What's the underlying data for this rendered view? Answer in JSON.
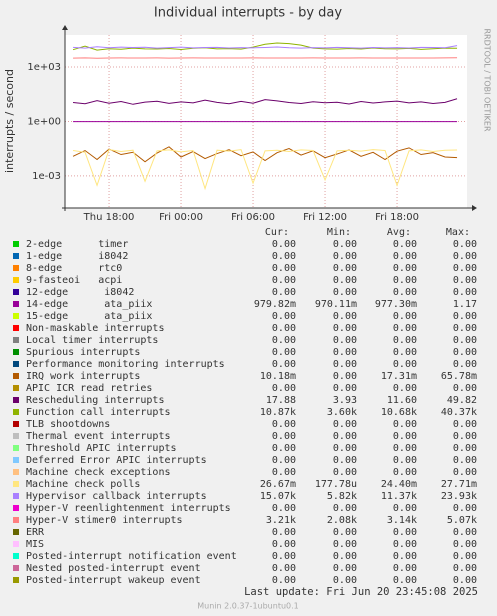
{
  "chart_data": {
    "type": "line",
    "title": "Individual interrupts - by day",
    "y_label": "interrupts / second",
    "side_text": "RRDTOOL / TOBI OETIKER",
    "footer": "Last update: Fri Jun 20 23:45:08 2025",
    "version": "Munin 2.0.37-1ubuntu0.1",
    "y_log": true,
    "grid": true,
    "xlim": [
      14.33,
      47.83
    ],
    "xticks": [
      {
        "value": 18,
        "label": "Thu 18:00"
      },
      {
        "value": 24,
        "label": "Fri 00:00"
      },
      {
        "value": 30,
        "label": "Fri 06:00"
      },
      {
        "value": 36,
        "label": "Fri 12:00"
      },
      {
        "value": 42,
        "label": "Fri 18:00"
      }
    ],
    "ylim": [
      1.7e-05,
      58000
    ],
    "yticks": [
      {
        "value": 0.001,
        "label": "1e-03"
      },
      {
        "value": 1,
        "label": "1e+00"
      },
      {
        "value": 1000,
        "label": "1e+03"
      }
    ],
    "x": [
      15,
      16,
      17,
      18,
      19,
      20,
      21,
      22,
      23,
      24,
      25,
      26,
      27,
      28,
      29,
      30,
      31,
      32,
      33,
      34,
      35,
      36,
      37,
      38,
      39,
      40,
      41,
      42,
      43,
      44,
      45,
      46,
      47
    ],
    "legend_headers": [
      "Cur:",
      "Min:",
      "Avg:",
      "Max:"
    ],
    "series": [
      {
        "name": "2-edge      timer",
        "color": "#00cc00",
        "cur": "0.00",
        "min": "0.00",
        "avg": "0.00",
        "max": "0.00"
      },
      {
        "name": "1-edge      i8042",
        "color": "#0066b3",
        "cur": "0.00",
        "min": "0.00",
        "avg": "0.00",
        "max": "0.00"
      },
      {
        "name": "8-edge      rtc0",
        "color": "#ff8000",
        "cur": "0.00",
        "min": "0.00",
        "avg": "0.00",
        "max": "0.00"
      },
      {
        "name": "9-fasteoi   acpi",
        "color": "#ffcc00",
        "cur": "0.00",
        "min": "0.00",
        "avg": "0.00",
        "max": "0.00"
      },
      {
        "name": "12-edge      i8042",
        "color": "#330099",
        "cur": "0.00",
        "min": "0.00",
        "avg": "0.00",
        "max": "0.00"
      },
      {
        "name": "14-edge      ata_piix",
        "color": "#990099",
        "cur": "979.82m",
        "min": "970.11m",
        "avg": "977.30m",
        "max": "1.17",
        "values": [
          0.978,
          0.976,
          0.977,
          0.979,
          0.975,
          0.977,
          0.978,
          0.976,
          0.977,
          0.977,
          0.978,
          0.976,
          0.977,
          0.979,
          0.977,
          0.976,
          0.978,
          0.977,
          0.977,
          0.976,
          0.978,
          0.977,
          0.979,
          0.976,
          0.977,
          0.978,
          0.977,
          0.976,
          0.977,
          0.978,
          0.977,
          0.976,
          0.98
        ]
      },
      {
        "name": "15-edge      ata_piix",
        "color": "#ccff00",
        "cur": "0.00",
        "min": "0.00",
        "avg": "0.00",
        "max": "0.00"
      },
      {
        "name": "Non-maskable interrupts",
        "color": "#ff0000",
        "cur": "0.00",
        "min": "0.00",
        "avg": "0.00",
        "max": "0.00"
      },
      {
        "name": "Local timer interrupts",
        "color": "#808080",
        "cur": "0.00",
        "min": "0.00",
        "avg": "0.00",
        "max": "0.00"
      },
      {
        "name": "Spurious interrupts",
        "color": "#008f00",
        "cur": "0.00",
        "min": "0.00",
        "avg": "0.00",
        "max": "0.00"
      },
      {
        "name": "Performance monitoring interrupts",
        "color": "#00487d",
        "cur": "0.00",
        "min": "0.00",
        "avg": "0.00",
        "max": "0.00"
      },
      {
        "name": "IRQ work interrupts",
        "color": "#b35a00",
        "cur": "10.18m",
        "min": "0.00",
        "avg": "17.31m",
        "max": "65.78m",
        "values": [
          0.012,
          0.025,
          0.008,
          0.03,
          0.015,
          0.02,
          0.006,
          0.018,
          0.04,
          0.011,
          0.022,
          0.009,
          0.017,
          0.028,
          0.013,
          0.021,
          0.007,
          0.019,
          0.032,
          0.014,
          0.024,
          0.01,
          0.016,
          0.027,
          0.012,
          0.02,
          0.008,
          0.023,
          0.035,
          0.015,
          0.019,
          0.011,
          0.0102
        ]
      },
      {
        "name": "APIC ICR read retries",
        "color": "#b38f00",
        "cur": "0.00",
        "min": "0.00",
        "avg": "0.00",
        "max": "0.00"
      },
      {
        "name": "Rescheduling interrupts",
        "color": "#6b006b",
        "cur": "17.88",
        "min": "3.93",
        "avg": "11.60",
        "max": "49.82",
        "values": [
          11,
          9.5,
          14,
          10,
          12.5,
          8.8,
          11.6,
          13,
          9.9,
          12,
          10.5,
          15,
          11.2,
          9.4,
          12.8,
          10.1,
          16,
          13.5,
          11,
          9.7,
          12.2,
          10.8,
          11.5,
          9.2,
          12.6,
          10.4,
          11.9,
          13.1,
          10.6,
          12,
          9.8,
          11.3,
          17.88
        ]
      },
      {
        "name": "Function call interrupts",
        "color": "#8fb300",
        "cur": "10.87k",
        "min": "3.60k",
        "avg": "10.68k",
        "max": "40.37k",
        "values": [
          9000,
          14000,
          8500,
          10200,
          9500,
          11000,
          10000,
          9800,
          10500,
          9200,
          10800,
          11500,
          9900,
          10300,
          9700,
          12500,
          18000,
          21000,
          19500,
          16000,
          11000,
          10000,
          9600,
          10400,
          9800,
          11200,
          10100,
          9900,
          10600,
          9400,
          10200,
          11000,
          10870
        ]
      },
      {
        "name": "TLB shootdowns",
        "color": "#b30000",
        "cur": "0.00",
        "min": "0.00",
        "avg": "0.00",
        "max": "0.00"
      },
      {
        "name": "Thermal event interrupts",
        "color": "#bebebe",
        "cur": "0.00",
        "min": "0.00",
        "avg": "0.00",
        "max": "0.00"
      },
      {
        "name": "Threshold APIC interrupts",
        "color": "#80ff80",
        "cur": "0.00",
        "min": "0.00",
        "avg": "0.00",
        "max": "0.00"
      },
      {
        "name": "Deferred Error APIC interrupts",
        "color": "#80c9ff",
        "cur": "0.00",
        "min": "0.00",
        "avg": "0.00",
        "max": "0.00"
      },
      {
        "name": "Machine check exceptions",
        "color": "#ffc080",
        "cur": "0.00",
        "min": "0.00",
        "avg": "0.00",
        "max": "0.00"
      },
      {
        "name": "Machine check polls",
        "color": "#ffe680",
        "cur": "26.67m",
        "min": "177.78u",
        "avg": "24.40m",
        "max": "27.71m",
        "values": [
          0.025,
          0.02,
          0.0003,
          0.028,
          0.022,
          0.026,
          0.0005,
          0.024,
          0.027,
          0.021,
          0.025,
          0.0002,
          0.026,
          0.023,
          0.028,
          0.0004,
          0.024,
          0.026,
          0.022,
          0.027,
          0.025,
          0.0006,
          0.024,
          0.026,
          0.023,
          0.028,
          0.025,
          0.0003,
          0.024,
          0.027,
          0.022,
          0.026,
          0.0267
        ]
      },
      {
        "name": "Hypervisor callback interrupts",
        "color": "#aa80ff",
        "cur": "15.07k",
        "min": "5.82k",
        "avg": "11.37k",
        "max": "23.93k",
        "values": [
          12000,
          11000,
          13000,
          11500,
          12500,
          11800,
          12200,
          11000,
          11600,
          12400,
          11300,
          11900,
          12100,
          11200,
          11700,
          11400,
          11800,
          12600,
          11500,
          10900,
          11700,
          11300,
          12000,
          11500,
          11000,
          11800,
          11400,
          11600,
          11200,
          12100,
          11800,
          11500,
          15070
        ]
      },
      {
        "name": "Hyper-V reenlightenment interrupts",
        "color": "#ee00cc",
        "cur": "0.00",
        "min": "0.00",
        "avg": "0.00",
        "max": "0.00"
      },
      {
        "name": "Hyper-V stimer0 interrupts",
        "color": "#ff8080",
        "cur": "3.21k",
        "min": "2.08k",
        "avg": "3.14k",
        "max": "5.07k",
        "values": [
          3100,
          3200,
          3050,
          3150,
          3180,
          3120,
          3140,
          3160,
          3100,
          3130,
          3170,
          3110,
          3150,
          3140,
          3120,
          3160,
          3130,
          3150,
          3110,
          3140,
          3170,
          3120,
          3150,
          3130,
          3160,
          3140,
          3110,
          3150,
          3130,
          3140,
          3120,
          3160,
          3210
        ]
      },
      {
        "name": "ERR",
        "color": "#666600",
        "cur": "0.00",
        "min": "0.00",
        "avg": "0.00",
        "max": "0.00"
      },
      {
        "name": "MIS",
        "color": "#ffbfff",
        "cur": "0.00",
        "min": "0.00",
        "avg": "0.00",
        "max": "0.00"
      },
      {
        "name": "Posted-interrupt notification event",
        "color": "#00ffcc",
        "cur": "0.00",
        "min": "0.00",
        "avg": "0.00",
        "max": "0.00"
      },
      {
        "name": "Nested posted-interrupt event",
        "color": "#cc6699",
        "cur": "0.00",
        "min": "0.00",
        "avg": "0.00",
        "max": "0.00"
      },
      {
        "name": "Posted-interrupt wakeup event",
        "color": "#999900",
        "cur": "0.00",
        "min": "0.00",
        "avg": "0.00",
        "max": "0.00"
      }
    ]
  }
}
